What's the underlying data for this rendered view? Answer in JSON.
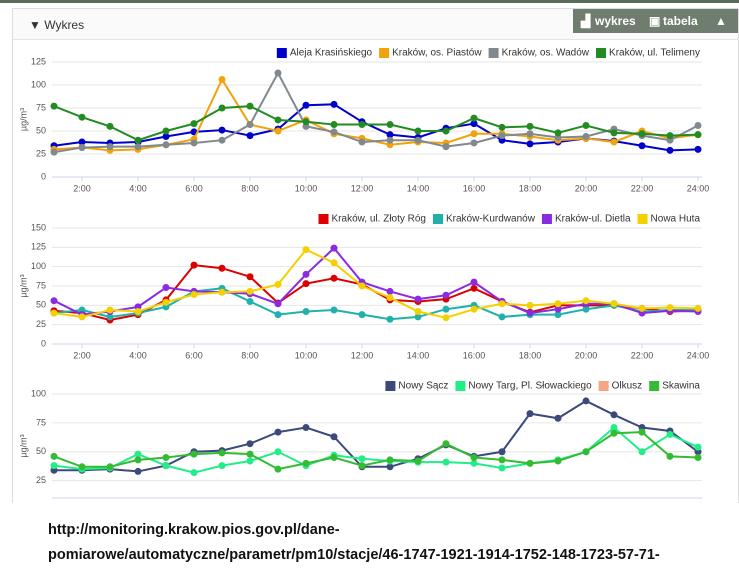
{
  "header": {
    "title": "Wykres",
    "buttons": [
      "wykres",
      "tabela"
    ]
  },
  "chart_data": [
    {
      "type": "line",
      "y_label": "µg/m³",
      "categories": [
        null,
        "2:00",
        null,
        "4:00",
        null,
        "6:00",
        null,
        "8:00",
        null,
        "10:00",
        null,
        "12:00",
        null,
        "14:00",
        null,
        "16:00",
        null,
        "18:00",
        null,
        "20:00",
        null,
        "22:00",
        null,
        "24:00"
      ],
      "ylim": [
        0,
        125
      ],
      "yticks": [
        0,
        25,
        50,
        75,
        100,
        125
      ],
      "grid": true,
      "legend": "top-right",
      "series": [
        {
          "name": "Aleja Krasińskiego",
          "color": "#0000cc",
          "values": [
            34,
            38,
            37,
            38,
            44,
            49,
            51,
            45,
            52,
            78,
            79,
            60,
            46,
            43,
            53,
            58,
            40,
            36,
            38,
            42,
            39,
            34,
            29,
            30
          ]
        },
        {
          "name": "Kraków, os. Piastów",
          "color": "#f0a30a",
          "values": [
            30,
            32,
            29,
            30,
            35,
            41,
            106,
            57,
            50,
            62,
            47,
            42,
            35,
            38,
            37,
            47,
            47,
            44,
            40,
            42,
            38,
            50,
            42,
            46
          ]
        },
        {
          "name": "Kraków, os. Wadów",
          "color": "#808890",
          "values": [
            27,
            32,
            33,
            33,
            35,
            37,
            40,
            57,
            113,
            55,
            49,
            38,
            40,
            40,
            33,
            37,
            45,
            47,
            43,
            44,
            52,
            45,
            40,
            56
          ]
        },
        {
          "name": "Kraków, ul. Telimeny",
          "color": "#228b22",
          "values": [
            77,
            65,
            55,
            40,
            50,
            58,
            75,
            77,
            62,
            60,
            57,
            57,
            57,
            50,
            50,
            64,
            54,
            55,
            48,
            56,
            48,
            47,
            45,
            46
          ]
        }
      ]
    },
    {
      "type": "line",
      "y_label": "µg/m³",
      "categories": [
        null,
        "2:00",
        null,
        "4:00",
        null,
        "6:00",
        null,
        "8:00",
        null,
        "10:00",
        null,
        "12:00",
        null,
        "14:00",
        null,
        "16:00",
        null,
        "18:00",
        null,
        "20:00",
        null,
        "22:00",
        null,
        "24:00"
      ],
      "ylim": [
        0,
        150
      ],
      "yticks": [
        0,
        25,
        50,
        75,
        100,
        125,
        150
      ],
      "grid": true,
      "legend": "top-right",
      "series": [
        {
          "name": "Kraków, ul. Złoty Róg",
          "color": "#dd0000",
          "values": [
            43,
            40,
            31,
            38,
            57,
            102,
            98,
            87,
            53,
            78,
            85,
            77,
            57,
            55,
            58,
            72,
            55,
            41,
            50,
            50,
            50,
            46,
            42,
            43
          ]
        },
        {
          "name": "Kraków-Kurdwanów",
          "color": "#20b2aa",
          "values": [
            40,
            44,
            35,
            40,
            48,
            68,
            72,
            55,
            38,
            42,
            44,
            38,
            32,
            35,
            45,
            50,
            35,
            38,
            38,
            45,
            50,
            42,
            44,
            44
          ]
        },
        {
          "name": "Kraków-ul. Dietla",
          "color": "#8a2be2",
          "values": [
            56,
            38,
            42,
            48,
            73,
            68,
            67,
            65,
            52,
            90,
            124,
            80,
            68,
            58,
            63,
            80,
            55,
            40,
            45,
            52,
            52,
            40,
            43,
            42
          ]
        },
        {
          "name": "Nowa Huta",
          "color": "#f5d000",
          "values": [
            40,
            35,
            44,
            42,
            54,
            64,
            67,
            68,
            77,
            122,
            105,
            75,
            60,
            42,
            34,
            45,
            52,
            50,
            52,
            56,
            52,
            46,
            47,
            46
          ]
        }
      ]
    },
    {
      "type": "line",
      "y_label": "µg/m³",
      "ylim": [
        10,
        100
      ],
      "yticks": [
        25,
        50,
        75,
        100
      ],
      "grid": true,
      "legend": "top-right",
      "series": [
        {
          "name": "Nowy Sącz",
          "color": "#3b4a7a",
          "values": [
            34,
            34,
            35,
            33,
            38,
            50,
            51,
            57,
            67,
            71,
            63,
            37,
            37,
            44,
            56,
            46,
            50,
            83,
            79,
            94,
            82,
            71,
            68,
            50
          ]
        },
        {
          "name": "Nowy Targ, Pl. Słowackiego",
          "color": "#22ee88",
          "values": [
            38,
            35,
            36,
            48,
            38,
            32,
            38,
            42,
            50,
            38,
            47,
            44,
            42,
            41,
            41,
            40,
            36,
            40,
            43,
            50,
            71,
            50,
            65,
            54
          ]
        },
        {
          "name": "Olkusz",
          "color": "#f4a582",
          "values": [
            null,
            null,
            null,
            null,
            null,
            null,
            null,
            null,
            null,
            null,
            null,
            null,
            null,
            null,
            null,
            null,
            null,
            null,
            null,
            null,
            null,
            null,
            null,
            null
          ]
        },
        {
          "name": "Skawina",
          "color": "#33bb33",
          "values": [
            46,
            37,
            37,
            43,
            45,
            48,
            49,
            48,
            35,
            40,
            45,
            38,
            43,
            42,
            57,
            45,
            43,
            40,
            42,
            50,
            66,
            67,
            46,
            45
          ]
        }
      ]
    }
  ],
  "footer_text": [
    "http://monitoring.krakow.pios.gov.pl/dane-",
    "pomiarowe/automatyczne/parametr/pm10/stacje/46-1747-1921-1914-1752-148-1723-57-71-"
  ]
}
